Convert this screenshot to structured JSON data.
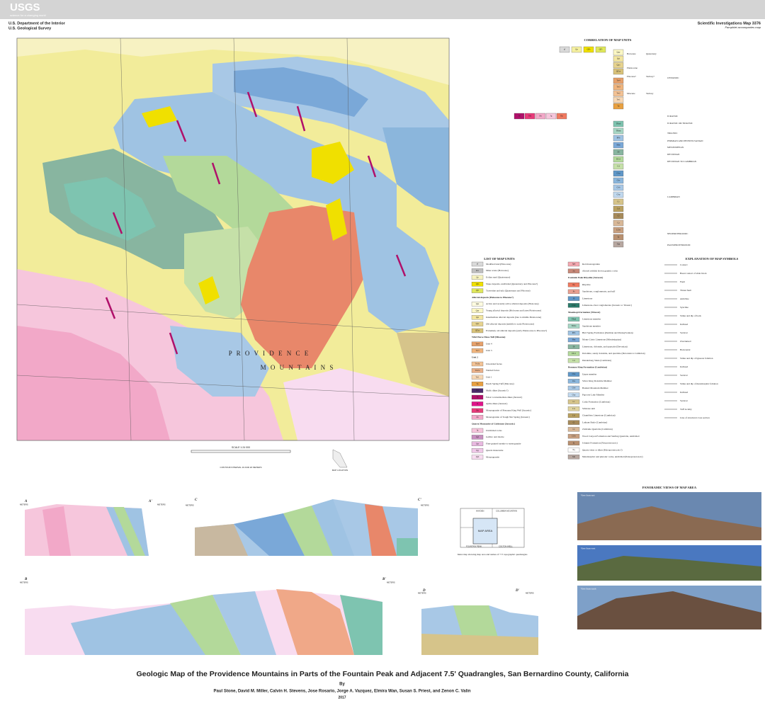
{
  "header": {
    "agency": "USGS",
    "tagline": "science for a changing world",
    "department": "U.S. Department of the Interior",
    "survey": "U.S. Geological Survey",
    "series": "Scientific Investigations Map 3376",
    "pamphlet": "Pamphlet accompanies map"
  },
  "map": {
    "labels": [
      "P R O V I D E N C E",
      "M O U N T A I N S"
    ],
    "scale": "SCALE 1:24 000",
    "datum": "CONTOUR INTERVAL 10 AND 20 METERS",
    "location": "MAP LOCATION"
  },
  "correlation": {
    "title": "CORRELATION OF MAP UNITS",
    "units": [
      {
        "code": "af",
        "color": "#d9d9d9"
      },
      {
        "code": "Qa",
        "color": "#f5f0a0"
      },
      {
        "code": "QTs",
        "color": "#f0e000"
      },
      {
        "code": "QTt",
        "color": "#e0e85a"
      },
      {
        "code": "Qay",
        "color": "#fbf7c4"
      },
      {
        "code": "Qai",
        "color": "#f3e6a0"
      },
      {
        "code": "Qao",
        "color": "#e7d38e"
      },
      {
        "code": "QTae",
        "color": "#d9c27a"
      },
      {
        "code": "Tw4",
        "color": "#e6a06a"
      },
      {
        "code": "Tw3",
        "color": "#f0b47d"
      },
      {
        "code": "Tw2",
        "color": "#f3c295"
      },
      {
        "code": "Tw1",
        "color": "#f8d8b5"
      },
      {
        "code": "Tp",
        "color": "#e8a040"
      },
      {
        "code": "Jd",
        "color": "#b0106a"
      },
      {
        "code": "Jbk",
        "color": "#e83a7a"
      },
      {
        "code": "Jtn",
        "color": "#f2a8c8"
      },
      {
        "code": "Jg",
        "color": "#f6c6dc"
      },
      {
        "code": "Jfp",
        "color": "#f07a60"
      },
      {
        "code": "TRml",
        "color": "#7ec4b0"
      },
      {
        "code": "TRms",
        "color": "#a7d7c5"
      },
      {
        "code": "PPb",
        "color": "#9fc3e3"
      },
      {
        "code": "Mm",
        "color": "#7aa8d8"
      },
      {
        "code": "Dl",
        "color": "#88b5a0"
      },
      {
        "code": "DCd",
        "color": "#b3d99a"
      },
      {
        "code": "Cd",
        "color": "#c5e0a8"
      },
      {
        "code": "Cbu",
        "color": "#5f97c8"
      },
      {
        "code": "Cbs",
        "color": "#8bb6dc"
      },
      {
        "code": "Cbb",
        "color": "#a8c8e6"
      },
      {
        "code": "Cbp",
        "color": "#c0d8ee"
      },
      {
        "code": "Cc",
        "color": "#d6c48a"
      },
      {
        "code": "Ccl",
        "color": "#b9a060"
      },
      {
        "code": "Cl",
        "color": "#a68a5a"
      },
      {
        "code": "Cz",
        "color": "#d8b898"
      },
      {
        "code": "CZw",
        "color": "#c8a080"
      },
      {
        "code": "Zj",
        "color": "#b89070"
      },
      {
        "code": "Xm",
        "color": "#b7a7a0"
      }
    ],
    "periods": [
      "Holocene",
      "Pleistocene",
      "Pliocene?",
      "Miocene",
      "Quaternary",
      "Tertiary?",
      "Tertiary",
      "CENOZOIC",
      "JURASSIC",
      "JURASSIC OR TRIASSIC",
      "TRIASSIC",
      "PERMIAN AND PENNSYLVANIAN",
      "MISSISSIPPIAN",
      "DEVONIAN",
      "DEVONIAN TO CAMBRIAN",
      "CAMBRIAN",
      "NEOPROTEROZOIC",
      "PALEOPROTEROZOIC"
    ]
  },
  "list_of_map_units": {
    "title": "LIST OF MAP UNITS",
    "left": [
      {
        "code": "af",
        "color": "#d9d9d9",
        "text": "Modified land (Holocene)"
      },
      {
        "code": "mw",
        "color": "#bfbfbf",
        "text": "Mine waste (Holocene)"
      },
      {
        "code": "Qe",
        "color": "#f7f3c0",
        "text": "Eolian sand (Quaternary)"
      },
      {
        "code": "QTs",
        "color": "#f0e000",
        "text": "Slope deposits, undivided (Quaternary and Pliocene?)"
      },
      {
        "code": "QTt",
        "color": "#e0e85a",
        "text": "Travertine and tufa (Quaternary and Pliocene)"
      },
      {
        "code": null,
        "color": null,
        "text": "Alluvial deposits (Holocene to Pliocene?)"
      },
      {
        "code": "Qaa",
        "color": "#fdfbe0",
        "text": "Active and recently active alluvial deposits (Holocene)"
      },
      {
        "code": "Qay",
        "color": "#fbf7c4",
        "text": "Young alluvial deposits (Holocene and latest Pleistocene)"
      },
      {
        "code": "Qai",
        "color": "#f3e6a0",
        "text": "Intermediate alluvial deposits (late to middle Pleistocene)"
      },
      {
        "code": "Qao",
        "color": "#e7d38e",
        "text": "Old alluvial deposits (middle to early Pleistocene)"
      },
      {
        "code": "QTae",
        "color": "#d9c27a",
        "text": "Extremely old alluvial deposits (early Pleistocene to Pliocene?)"
      },
      {
        "code": null,
        "color": null,
        "text": "Wild Horse Mesa Tuff (Miocene)"
      },
      {
        "code": "Tw4",
        "color": "#e6a06a",
        "text": "Unit 4"
      },
      {
        "code": "Tw3",
        "color": "#f0b47d",
        "text": "Unit 3"
      },
      {
        "code": null,
        "color": null,
        "text": "Unit 2"
      },
      {
        "code": "Tw2u",
        "color": "#f3c295",
        "text": "Unwelded facies"
      },
      {
        "code": "Tw2w",
        "color": "#eab088",
        "text": "Welded facies"
      },
      {
        "code": "Tw1",
        "color": "#f8d8b5",
        "text": "Unit 1"
      },
      {
        "code": "Tp",
        "color": "#e8a040",
        "text": "Peach Spring Tuff (Miocene)"
      },
      {
        "code": "Jmd",
        "color": "#4a2a6a",
        "text": "Mafic dikes (Jurassic?)"
      },
      {
        "code": "Jd",
        "color": "#b0106a",
        "text": "Felsic to intermediate dikes (Jurassic)"
      },
      {
        "code": "Ja",
        "color": "#e0148a",
        "text": "Aplite dikes (Jurassic)"
      },
      {
        "code": "Jbk",
        "color": "#e83a7a",
        "text": "Monzogranite of Bonanza King Well (Jurassic)"
      },
      {
        "code": "Jtn",
        "color": "#f2a8c8",
        "text": "Monzogranite of Tough Nut Spring (Jurassic)"
      },
      {
        "code": null,
        "color": null,
        "text": "Quartz Monzonite of Goldstone (Jurassic)"
      },
      {
        "code": "Jg",
        "color": "#f6c6dc",
        "text": "Undivided rocks"
      },
      {
        "code": "Jgd",
        "color": "#c890c0",
        "text": "Gabbro and diorite"
      },
      {
        "code": "Jgs",
        "color": "#e8b8e0",
        "text": "Fine-grained syenite to syenogranite"
      },
      {
        "code": "Jgq",
        "color": "#f0c8e8",
        "text": "Quartz monzonite"
      },
      {
        "code": "Jgm",
        "color": "#f8dcf0",
        "text": "Monzogranite"
      }
    ],
    "right": [
      {
        "code": "Jgm",
        "color": "#f4a8b0",
        "text": "Red monzogranite"
      },
      {
        "code": "Jar",
        "color": "#c88878",
        "text": "Altered reddish brown granitic rocks"
      },
      {
        "code": null,
        "color": null,
        "text": "Fountain Peak Rhyolite (Jurassic)"
      },
      {
        "code": "Jfp",
        "color": "#f07a60",
        "text": "Rhyolite"
      },
      {
        "code": "Jfs",
        "color": "#e8a090",
        "text": "Sandstone, conglomerate, and tuff"
      },
      {
        "code": "Jfl",
        "color": "#5f97c8",
        "text": "Limestone"
      },
      {
        "code": "JTRc",
        "color": "#2a7a6a",
        "text": "Limestone-clast conglomerate (Jurassic or Triassic)"
      },
      {
        "code": null,
        "color": null,
        "text": "Moenkopi Formation (Triassic)"
      },
      {
        "code": "TRml",
        "color": "#7ec4b0",
        "text": "Limestone member"
      },
      {
        "code": "TRms",
        "color": "#a7d7c5",
        "text": "Sandstone member"
      },
      {
        "code": "PPb",
        "color": "#9fc3e3",
        "text": "Bird Spring Formation (Permian and Pennsylvanian)"
      },
      {
        "code": "Mm",
        "color": "#7aa8d8",
        "text": "Monte Cristo Limestone (Mississippian)"
      },
      {
        "code": "Dl",
        "color": "#88b5a0",
        "text": "Limestone, dolomite, and quartzite (Devonian)"
      },
      {
        "code": "DCd",
        "color": "#b3d99a",
        "text": "Dolomite, sandy dolomite, and quartzite (Devonian to Cambrian)"
      },
      {
        "code": "Cd",
        "color": "#c5e0a8",
        "text": "Dunderberg Shale (Cambrian)"
      },
      {
        "code": null,
        "color": null,
        "text": "Bonanza King Formation (Cambrian)"
      },
      {
        "code": "Cbu",
        "color": "#5f97c8",
        "text": "Upper member"
      },
      {
        "code": "Cbs",
        "color": "#8bb6dc",
        "text": "Silver King Dolomite Member"
      },
      {
        "code": "Cbb",
        "color": "#a8c8e6",
        "text": "Banded Mountain Member"
      },
      {
        "code": "Cbp",
        "color": "#c0d8ee",
        "text": "Papoose Lake Member"
      },
      {
        "code": "Cc",
        "color": "#d6c48a",
        "text": "Cadiz Formation (Cambrian)"
      },
      {
        "code": "Ccs",
        "color": "#e0d4a0",
        "text": "Siltstone unit"
      },
      {
        "code": "Ccl",
        "color": "#b9a060",
        "text": "Chambless Limestone (Cambrian)"
      },
      {
        "code": "Cl",
        "color": "#a68a5a",
        "text": "Latham Shale (Cambrian)"
      },
      {
        "code": "Cz",
        "color": "#d8b898",
        "text": "Zabriskie Quartzite (Cambrian)"
      },
      {
        "code": "CZw",
        "color": "#c8a080",
        "text": "Wood Canyon Formation and Sterling Quartzite, undivided"
      },
      {
        "code": "Zj",
        "color": "#b89070",
        "text": "Johnnie Formation (Neoproterozoic)"
      },
      {
        "code": "Xq",
        "color": "#ffffff",
        "text": "Quartz veins or dikes (Paleoproterozoic?)"
      },
      {
        "code": "Xm",
        "color": "#b7a7a0",
        "text": "Metamorphic and plutonic rocks, undivided (Paleoproterozoic)"
      }
    ]
  },
  "explanation": {
    "title": "EXPLANATION OF MAP SYMBOLS",
    "items": [
      "Contact",
      "Basal contact of slide block",
      "Fault",
      "Thrust fault",
      "Anticline",
      "Syncline",
      "Strike and dip of beds",
      "Inclined",
      "Vertical",
      "Overturned",
      "Horizontal",
      "Strike and dip of igneous foliation",
      "Inclined",
      "Vertical",
      "Strike and dip of metamorphic foliation",
      "Inclined",
      "Vertical",
      "Tuff locality",
      "Line of structural cross section"
    ]
  },
  "cross_sections": {
    "labels": [
      "A",
      "A'",
      "C",
      "C'",
      "B",
      "B'",
      "D",
      "D'"
    ],
    "unit": "METERS"
  },
  "index_map": {
    "quads": [
      "HAYDEN",
      "COLUMBIA MOUNTAIN",
      "FOUNTAIN PEAK",
      "COLTON WELL"
    ],
    "area": "MAP AREA",
    "caption": "Index map showing map area and names of 7.5' topographic quadrangles"
  },
  "panoramic": {
    "title": "PANORAMIC VIEWS OF MAP AREA",
    "captions": [
      "View from east",
      "View from west",
      "View from south"
    ]
  },
  "title": "Geologic Map of the Providence Mountains in Parts of the Fountain Peak and Adjacent 7.5' Quadrangles, San Bernardino County, California",
  "by": "By",
  "authors": "Paul Stone, David M. Miller, Calvin H. Stevens, Jose Rosario, Jorge A. Vazquez, Elmira Wan, Susan S. Priest, and Zenon C. Valin",
  "year": "2017"
}
